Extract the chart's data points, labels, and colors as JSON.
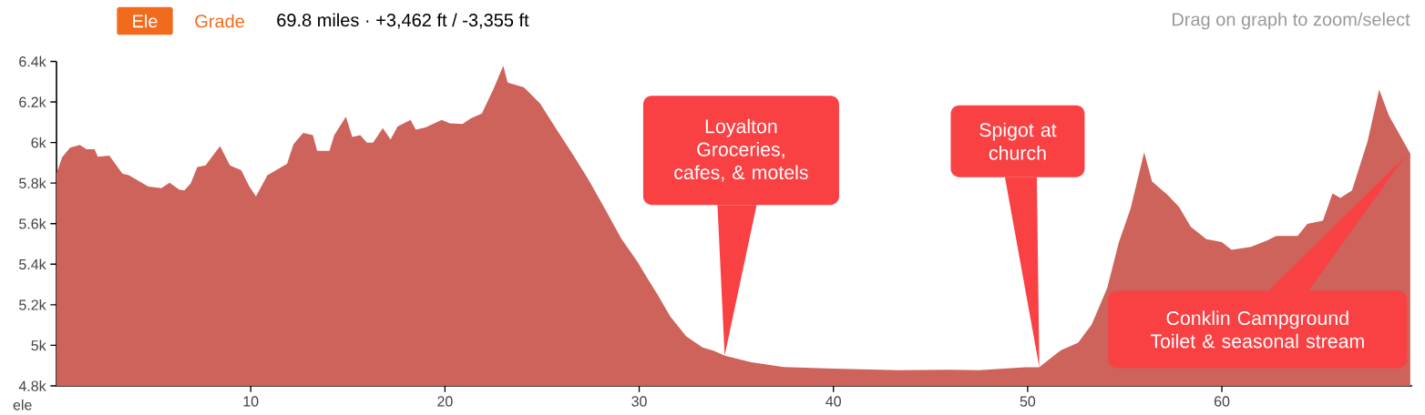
{
  "chart_data": {
    "type": "area",
    "title": "69.8 miles · +3,462 ft / -3,355 ft",
    "ylabel": "ele",
    "xlim": [
      0,
      69.8
    ],
    "xticks": [
      10,
      20,
      30,
      40,
      50,
      60
    ],
    "ylim": [
      4800,
      6400
    ],
    "yticks": [
      {
        "value": 4800,
        "label": "4.8k"
      },
      {
        "value": 5000,
        "label": "5k"
      },
      {
        "value": 5200,
        "label": "5.2k"
      },
      {
        "value": 5400,
        "label": "5.4k"
      },
      {
        "value": 5600,
        "label": "5.6k"
      },
      {
        "value": 5800,
        "label": "5.8k"
      },
      {
        "value": 6000,
        "label": "6k"
      },
      {
        "value": 6200,
        "label": "6.2k"
      },
      {
        "value": 6400,
        "label": "6.4k"
      }
    ],
    "series": [
      {
        "color": "#cd635b",
        "x": [
          0,
          0.29,
          0.7,
          1.2,
          1.54,
          1.96,
          2.13,
          2.72,
          3.39,
          3.72,
          4.73,
          5.4,
          5.82,
          6.33,
          6.58,
          6.91,
          7.25,
          7.67,
          8.42,
          8.93,
          9.51,
          9.93,
          10.27,
          10.86,
          11.87,
          12.2,
          12.7,
          13.2,
          13.42,
          14.05,
          14.3,
          14.9,
          15.23,
          15.64,
          15.98,
          16.3,
          16.8,
          17.2,
          17.56,
          18.23,
          18.5,
          19.0,
          19.83,
          20.25,
          20.9,
          21.34,
          21.9,
          22.5,
          23.0,
          23.23,
          24.07,
          24.9,
          25.7,
          26.57,
          27.4,
          28.25,
          29.08,
          29.9,
          30.4,
          30.92,
          31.6,
          32.42,
          33.26,
          33.85,
          34.4,
          35.76,
          37.43,
          39.94,
          43.3,
          45.9,
          47.5,
          49.9,
          50.6,
          51.1,
          51.7,
          52.6,
          53.3,
          54.1,
          54.7,
          55.3,
          56.0,
          56.4,
          57.2,
          57.8,
          58.4,
          59.2,
          60.0,
          60.5,
          61.5,
          62.3,
          62.8,
          63.9,
          64.4,
          65.2,
          65.7,
          66.1,
          66.7,
          67.5,
          68.1,
          68.6,
          69.7
        ],
        "values": [
          5847,
          5927,
          5975,
          5988,
          5967,
          5967,
          5930,
          5935,
          5847,
          5839,
          5783,
          5775,
          5802,
          5767,
          5764,
          5799,
          5879,
          5887,
          5983,
          5887,
          5863,
          5783,
          5735,
          5839,
          5895,
          5991,
          6047,
          6036,
          5959,
          5959,
          6036,
          6127,
          6027,
          6036,
          5999,
          5999,
          6071,
          6015,
          6079,
          6111,
          6063,
          6075,
          6111,
          6095,
          6091,
          6119,
          6143,
          6264,
          6379,
          6296,
          6272,
          6192,
          6071,
          5943,
          5815,
          5671,
          5526,
          5414,
          5334,
          5254,
          5142,
          5045,
          4989,
          4973,
          4949,
          4917,
          4893,
          4885,
          4877,
          4880,
          4877,
          4892,
          4892,
          4930,
          4975,
          5013,
          5103,
          5283,
          5509,
          5674,
          5952,
          5809,
          5742,
          5682,
          5584,
          5524,
          5509,
          5471,
          5486,
          5516,
          5539,
          5539,
          5599,
          5614,
          5749,
          5727,
          5764,
          6005,
          6261,
          6133,
          5945
        ]
      }
    ],
    "annotations": [
      "Ele",
      "Grade",
      "Drag on graph to zoom/select",
      {
        "text": "Loyalton Groceries, cafes, & motels",
        "x": 34.4,
        "y": 4949
      },
      {
        "text": "Spigot at church",
        "x": 50.6,
        "y": 4892
      },
      "Conklin Campground Toilet & seasonal stream"
    ]
  }
}
